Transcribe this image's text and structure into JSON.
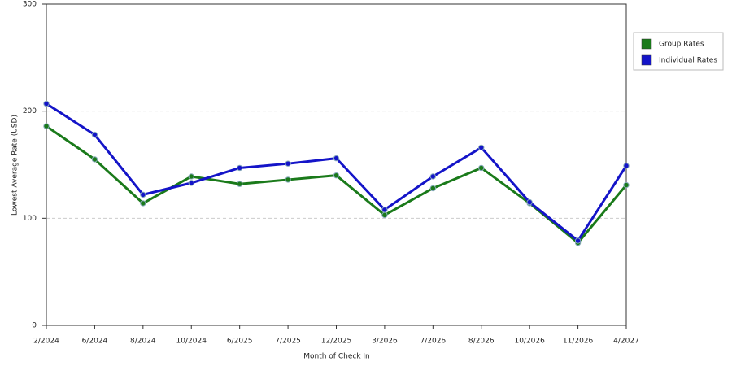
{
  "chart_data": {
    "type": "line",
    "x_label": "Month of Check In",
    "y_label": "Lowest Average Rate (USD)",
    "categories": [
      "2/2024",
      "6/2024",
      "8/2024",
      "10/2024",
      "6/2025",
      "7/2025",
      "12/2025",
      "3/2026",
      "7/2026",
      "8/2026",
      "10/2026",
      "11/2026",
      "4/2027"
    ],
    "series": [
      {
        "name": "Group Rates",
        "color": "#1a7a1a",
        "values": [
          186,
          155,
          114,
          139,
          132,
          136,
          140,
          103,
          128,
          147,
          114,
          77,
          131
        ]
      },
      {
        "name": "Individual Rates",
        "color": "#1414c8",
        "values": [
          207,
          178,
          122,
          133,
          147,
          151,
          156,
          108,
          139,
          166,
          115,
          79,
          149
        ]
      }
    ],
    "ylim": [
      0,
      300
    ],
    "yticks": [
      0,
      100,
      200,
      300
    ],
    "grid": true,
    "legend": "right"
  }
}
